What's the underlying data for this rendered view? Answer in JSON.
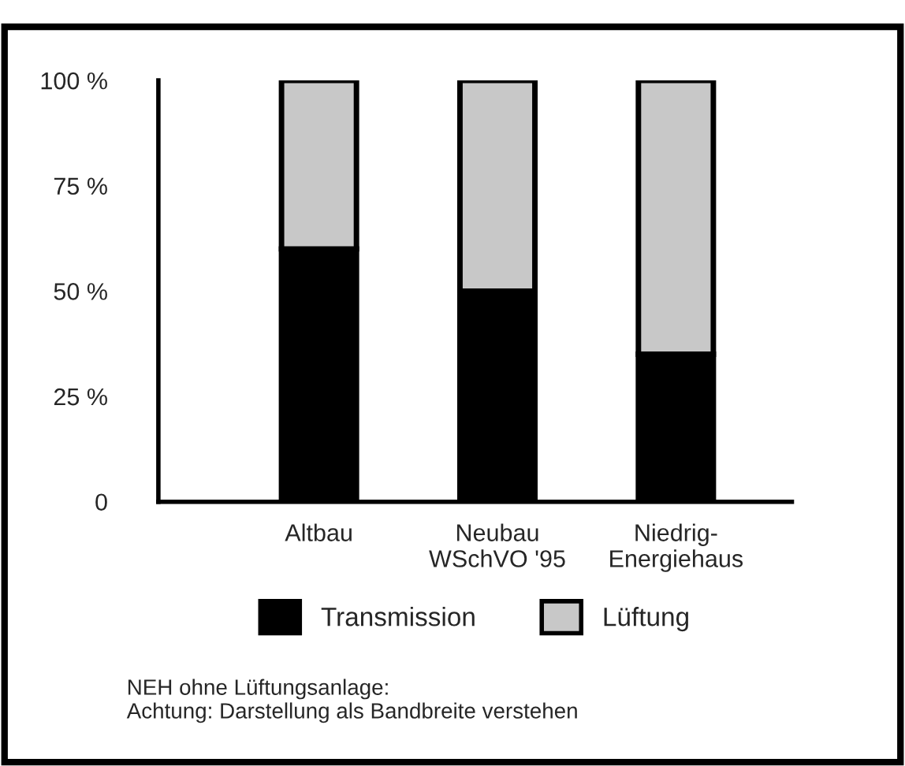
{
  "chart_data": {
    "type": "bar",
    "stacked": true,
    "categories": [
      "Altbau",
      "Neubau\nWSchVO '95",
      "Niedrig-\nEnergiehaus"
    ],
    "series": [
      {
        "name": "Transmission",
        "color": "#000000",
        "values": [
          60,
          50,
          35
        ]
      },
      {
        "name": "Lüftung",
        "color": "#c8c8c8",
        "values": [
          40,
          50,
          65
        ]
      }
    ],
    "ylim": [
      0,
      100
    ],
    "yticks": [
      0,
      {
        "value": 25,
        "label": "25 %"
      },
      {
        "value": 50,
        "label": "50 %"
      },
      {
        "value": 75,
        "label": "75 %"
      },
      {
        "value": 100,
        "label": "100 %"
      }
    ],
    "grid": false,
    "legend": "bottom",
    "annotations": [
      "NEH ohne Lüftungsanlage:\nAchtung: Darstellung als Bandbreite verstehen"
    ]
  }
}
